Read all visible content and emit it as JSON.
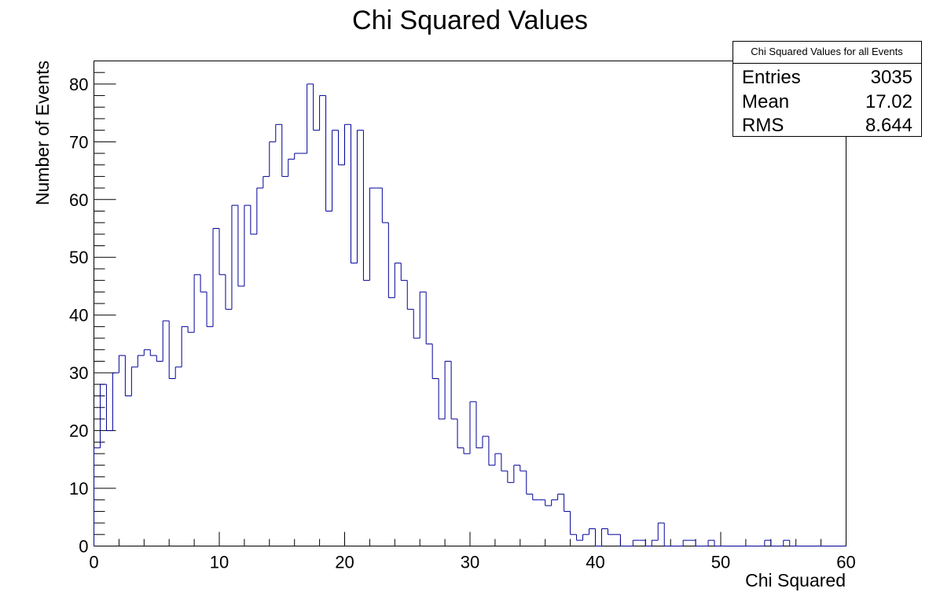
{
  "chart_data": {
    "type": "histogram",
    "title": "Chi Squared Values",
    "xlabel": "Chi Squared",
    "ylabel": "Number of Events",
    "xlim": [
      0,
      60
    ],
    "ylim": [
      0,
      84
    ],
    "x_ticks": [
      0,
      10,
      20,
      30,
      40,
      50,
      60
    ],
    "y_ticks": [
      0,
      10,
      20,
      30,
      40,
      50,
      60,
      70,
      80
    ],
    "bin_width": 0.5,
    "line_color": "#000099",
    "grid": false,
    "legend": "none",
    "series": [
      {
        "values": [
          17,
          28,
          20,
          30,
          33,
          26,
          31,
          33,
          34,
          33,
          32,
          39,
          29,
          31,
          38,
          37,
          47,
          44,
          38,
          55,
          47,
          41,
          59,
          45,
          59,
          54,
          62,
          64,
          70,
          73,
          64,
          67,
          68,
          68,
          80,
          72,
          78,
          58,
          72,
          66,
          73,
          49,
          72,
          46,
          62,
          62,
          56,
          43,
          49,
          46,
          41,
          36,
          44,
          35,
          29,
          22,
          32,
          22,
          17,
          16,
          25,
          17,
          19,
          14,
          16,
          13,
          11,
          14,
          13,
          9,
          8,
          8,
          7,
          8,
          9,
          6,
          2,
          1,
          2,
          3,
          0,
          3,
          2,
          2,
          0,
          0,
          1,
          1,
          0,
          1,
          4,
          0,
          0,
          0,
          1,
          1,
          0,
          0,
          1,
          0,
          0,
          0,
          0,
          0,
          0,
          0,
          0,
          1,
          0,
          0,
          1,
          0,
          0,
          0,
          0,
          0,
          0,
          0,
          0,
          0
        ]
      }
    ],
    "stats_box": {
      "title": "Chi Squared Values for all Events",
      "rows": [
        {
          "label": "Entries",
          "value": "3035"
        },
        {
          "label": "Mean",
          "value": "17.02"
        },
        {
          "label": "RMS",
          "value": "8.644"
        }
      ]
    }
  }
}
